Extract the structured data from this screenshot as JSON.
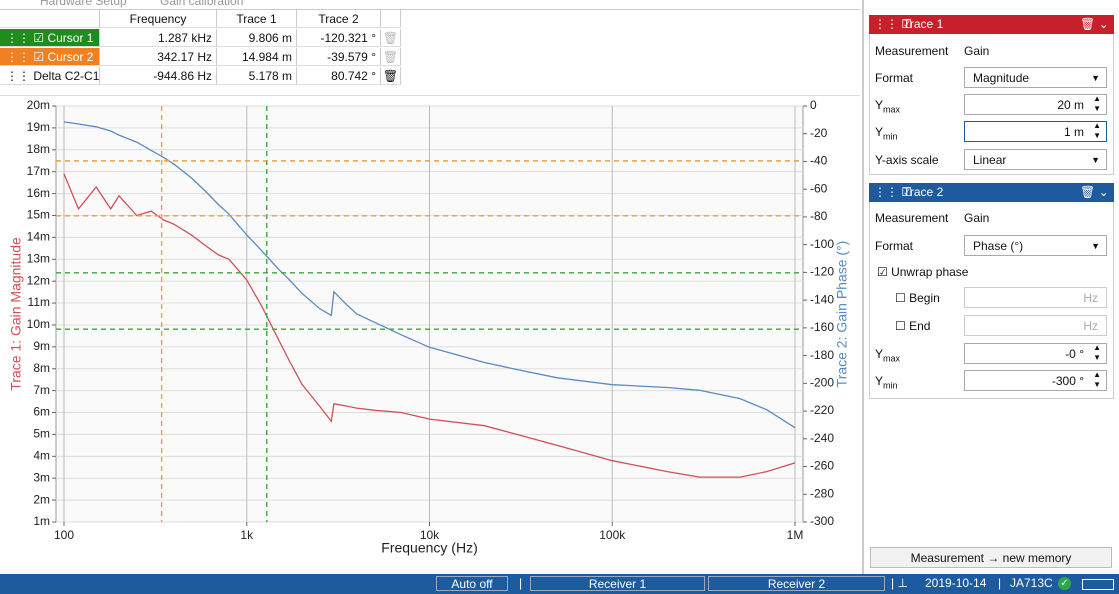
{
  "tabs": [
    "Hardware Setup",
    "Gain calibration"
  ],
  "cursor_table": {
    "headers": [
      "Frequency",
      "Trace 1",
      "Trace 2"
    ],
    "rows": [
      {
        "name": "Cursor 1",
        "color": "#1e8c1e",
        "cells": [
          "1.287 kHz",
          "9.806 m",
          "-120.321 °"
        ]
      },
      {
        "name": "Cursor 2",
        "color": "#f08020",
        "cells": [
          "342.17 Hz",
          "14.984 m",
          "-39.579 °"
        ]
      },
      {
        "name": "Delta C2-C1",
        "color": "#ffffff",
        "cells": [
          "-944.86 Hz",
          "5.178 m",
          "80.742 °"
        ]
      }
    ]
  },
  "chart_data": {
    "type": "line",
    "xlabel": "Frequency (Hz)",
    "ylabel": "Trace 1: Gain Magnitude",
    "y2label": "Trace 2: Gain Phase (°)",
    "xscale": "log",
    "xlim": [
      100,
      1000000
    ],
    "xticks": [
      100,
      {
        "value": 1000,
        "label": "1k"
      },
      {
        "value": 10000,
        "label": "10k"
      },
      {
        "value": 100000,
        "label": "100k"
      },
      {
        "value": 1000000,
        "label": "1M"
      }
    ],
    "ylim": [
      0.001,
      0.02
    ],
    "yticks": [
      {
        "value": 0.001,
        "label": "1m"
      },
      {
        "value": 0.002,
        "label": "2m"
      },
      {
        "value": 0.003,
        "label": "3m"
      },
      {
        "value": 0.004,
        "label": "4m"
      },
      {
        "value": 0.005,
        "label": "5m"
      },
      {
        "value": 0.006,
        "label": "6m"
      },
      {
        "value": 0.007,
        "label": "7m"
      },
      {
        "value": 0.008,
        "label": "8m"
      },
      {
        "value": 0.009,
        "label": "9m"
      },
      {
        "value": 0.01,
        "label": "10m"
      },
      {
        "value": 0.011,
        "label": "11m"
      },
      {
        "value": 0.012,
        "label": "12m"
      },
      {
        "value": 0.013,
        "label": "13m"
      },
      {
        "value": 0.014,
        "label": "14m"
      },
      {
        "value": 0.015,
        "label": "15m"
      },
      {
        "value": 0.016,
        "label": "16m"
      },
      {
        "value": 0.017,
        "label": "17m"
      },
      {
        "value": 0.018,
        "label": "18m"
      },
      {
        "value": 0.019,
        "label": "19m"
      },
      {
        "value": 0.02,
        "label": "20m"
      }
    ],
    "y2lim": [
      -300,
      0
    ],
    "y2ticks": [
      0,
      -20,
      -40,
      -60,
      -80,
      -100,
      -120,
      -140,
      -160,
      -180,
      -200,
      -220,
      -240,
      -260,
      -280,
      -300
    ],
    "grid": true,
    "x": [
      100,
      120,
      150,
      180,
      200,
      250,
      300,
      350,
      400,
      500,
      600,
      700,
      800,
      900,
      1000,
      1200,
      1500,
      1700,
      2000,
      2500,
      2900,
      3000,
      3500,
      4000,
      5000,
      7000,
      10000,
      20000,
      30000,
      50000,
      100000,
      200000,
      300000,
      500000,
      700000,
      1000000
    ],
    "series": [
      {
        "name": "Trace 1",
        "color": "#d0505a",
        "values": [
          0.0169,
          0.0153,
          0.0163,
          0.0153,
          0.0159,
          0.015,
          0.0152,
          0.0148,
          0.0146,
          0.0141,
          0.0136,
          0.0132,
          0.013,
          0.0125,
          0.01205,
          0.0109,
          0.0093,
          0.0084,
          0.0073,
          0.0063,
          0.0056,
          0.0064,
          0.0063,
          0.0062,
          0.0061,
          0.006,
          0.0057,
          0.0054,
          0.005,
          0.0045,
          0.0038,
          0.0033,
          0.00305,
          0.00305,
          0.0033,
          0.0037
        ]
      },
      {
        "name": "Trace 2",
        "color": "#5a8ac0",
        "axis": "y2",
        "values": [
          -11.5,
          -13,
          -15,
          -18,
          -21,
          -26,
          -32,
          -37,
          -42,
          -52,
          -62,
          -71,
          -78,
          -86,
          -93,
          -104,
          -118,
          -125,
          -135,
          -146,
          -151,
          -134,
          -143,
          -150,
          -156,
          -165,
          -174,
          -185,
          -190,
          -196,
          -201,
          -203,
          -205,
          -211,
          -219,
          -232
        ]
      }
    ],
    "cursors": [
      {
        "color": "#3aa83a",
        "x": 1287,
        "y": 0.009806,
        "y2": -120.321
      },
      {
        "color": "#f0a040",
        "x": 342.17,
        "y": 0.014984,
        "y2": -39.579
      }
    ]
  },
  "panel": {
    "trace1": {
      "title": "Trace 1",
      "measurement": [
        "Measurement",
        "Gain"
      ],
      "format": [
        "Format",
        "Magnitude"
      ],
      "ymax": [
        "Y",
        "max",
        "20 m"
      ],
      "ymin": [
        "Y",
        "min",
        "1 m"
      ],
      "scale": [
        "Y-axis scale",
        "Linear"
      ]
    },
    "trace2": {
      "title": "Trace 2",
      "measurement": [
        "Measurement",
        "Gain"
      ],
      "format": [
        "Format",
        "Phase (°)"
      ],
      "unwrap": "Unwrap phase",
      "begin": [
        "Begin",
        "Hz"
      ],
      "end": [
        "End",
        "Hz"
      ],
      "ymax": [
        "Y",
        "max",
        "-0 °"
      ],
      "ymin": [
        "Y",
        "min",
        "-300 °"
      ]
    },
    "button": "Measurement → new memory"
  },
  "status_bar": {
    "auto": "Auto off",
    "receiver1": "Receiver 1",
    "receiver2": "Receiver 2",
    "date": "2019-10-14",
    "device": "JA713C"
  }
}
